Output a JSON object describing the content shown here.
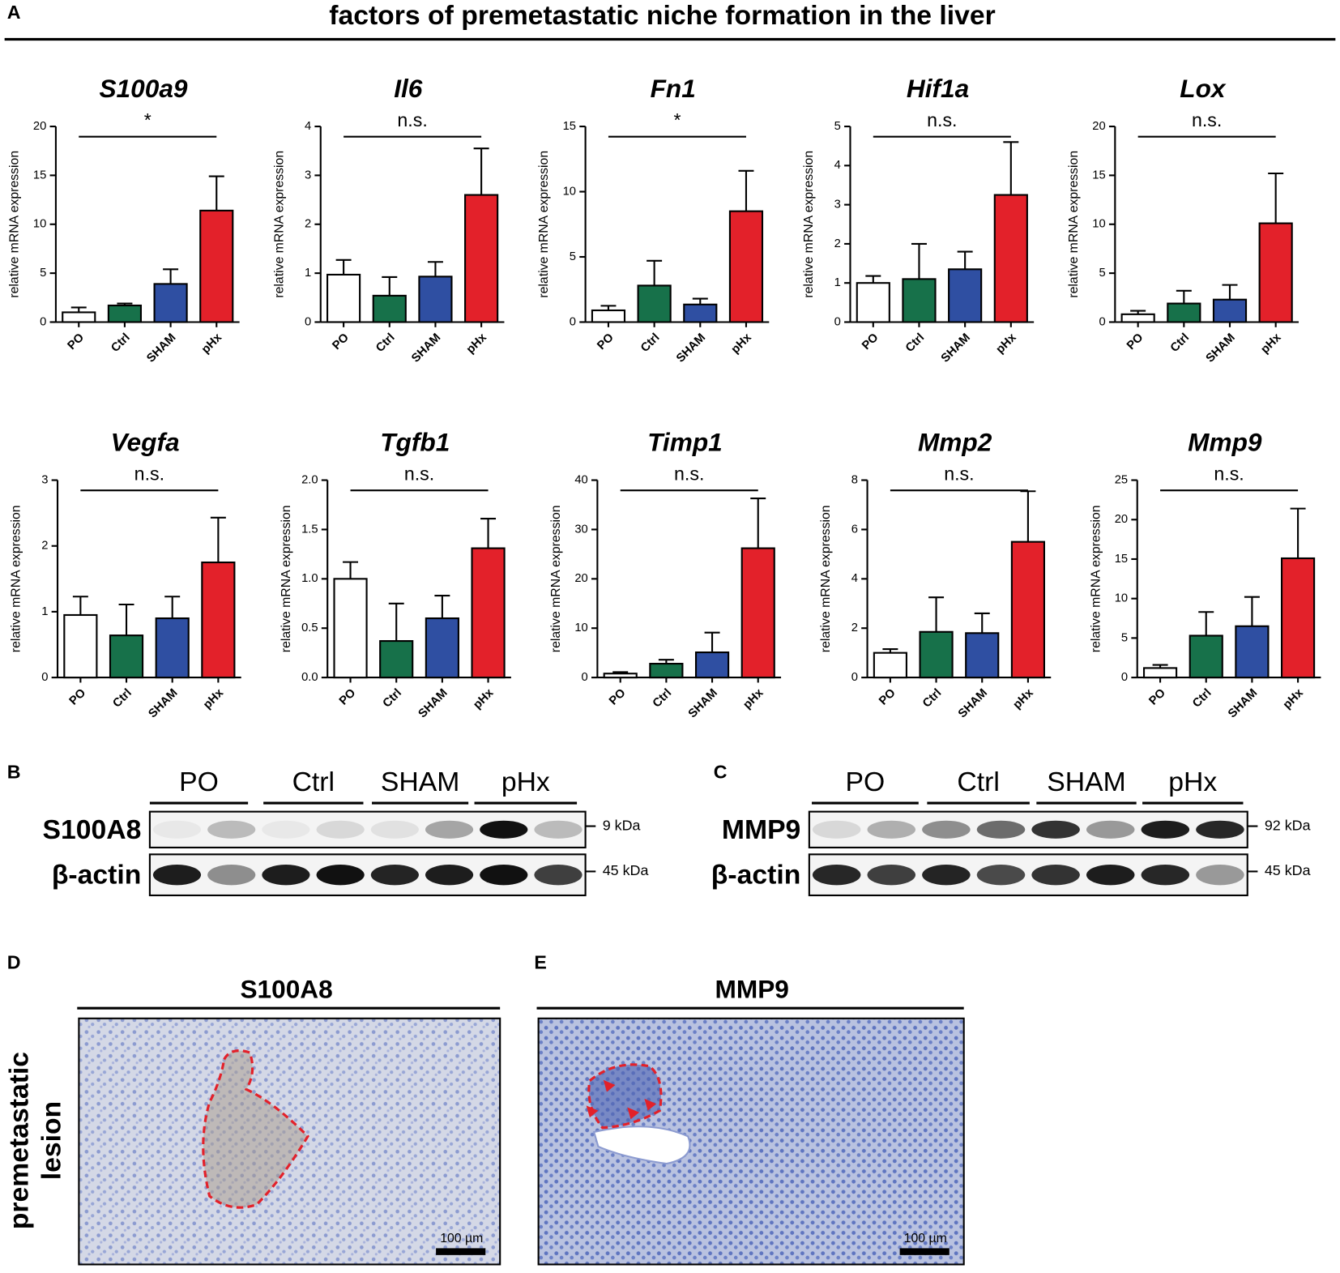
{
  "figure": {
    "title": "factors of premetastatic niche formation in the liver",
    "panel_labels": [
      "A",
      "B",
      "C",
      "D",
      "E"
    ],
    "ylabel": "relative mRNA expression"
  },
  "chart_data": [
    {
      "type": "bar",
      "title": "S100a9",
      "categories": [
        "PO",
        "Ctrl",
        "SHAM",
        "pHx"
      ],
      "colors": [
        "#ffffff",
        "#17714a",
        "#2f4fa2",
        "#e3212a"
      ],
      "values": [
        1.0,
        1.7,
        3.9,
        11.4
      ],
      "errors": [
        0.5,
        0.2,
        1.5,
        3.5
      ],
      "ylim": [
        0,
        20
      ],
      "yticks": [
        0,
        5,
        10,
        15,
        20
      ],
      "significance": "*"
    },
    {
      "type": "bar",
      "title": "Il6",
      "categories": [
        "PO",
        "Ctrl",
        "SHAM",
        "pHx"
      ],
      "colors": [
        "#ffffff",
        "#17714a",
        "#2f4fa2",
        "#e3212a"
      ],
      "values": [
        0.97,
        0.54,
        0.93,
        2.6
      ],
      "errors": [
        0.3,
        0.38,
        0.3,
        0.95
      ],
      "ylim": [
        0,
        4
      ],
      "yticks": [
        0,
        1,
        2,
        3,
        4
      ],
      "significance": "n.s."
    },
    {
      "type": "bar",
      "title": "Fn1",
      "categories": [
        "PO",
        "Ctrl",
        "SHAM",
        "pHx"
      ],
      "colors": [
        "#ffffff",
        "#17714a",
        "#2f4fa2",
        "#e3212a"
      ],
      "values": [
        0.9,
        2.8,
        1.35,
        8.5
      ],
      "errors": [
        0.35,
        1.9,
        0.45,
        3.1
      ],
      "ylim": [
        0,
        15
      ],
      "yticks": [
        0,
        5,
        10,
        15
      ],
      "significance": "*"
    },
    {
      "type": "bar",
      "title": "Hif1a",
      "categories": [
        "PO",
        "Ctrl",
        "SHAM",
        "pHx"
      ],
      "colors": [
        "#ffffff",
        "#17714a",
        "#2f4fa2",
        "#e3212a"
      ],
      "values": [
        1.0,
        1.1,
        1.35,
        3.25
      ],
      "errors": [
        0.18,
        0.9,
        0.45,
        1.35
      ],
      "ylim": [
        0,
        5
      ],
      "yticks": [
        0,
        1,
        2,
        3,
        4,
        5
      ],
      "significance": "n.s."
    },
    {
      "type": "bar",
      "title": "Lox",
      "categories": [
        "PO",
        "Ctrl",
        "SHAM",
        "pHx"
      ],
      "colors": [
        "#ffffff",
        "#17714a",
        "#2f4fa2",
        "#e3212a"
      ],
      "values": [
        0.8,
        1.9,
        2.3,
        10.1
      ],
      "errors": [
        0.35,
        1.3,
        1.5,
        5.1
      ],
      "ylim": [
        0,
        20
      ],
      "yticks": [
        0,
        5,
        10,
        15,
        20
      ],
      "significance": "n.s."
    },
    {
      "type": "bar",
      "title": "Vegfa",
      "categories": [
        "PO",
        "Ctrl",
        "SHAM",
        "pHx"
      ],
      "colors": [
        "#ffffff",
        "#17714a",
        "#2f4fa2",
        "#e3212a"
      ],
      "values": [
        0.95,
        0.64,
        0.9,
        1.75
      ],
      "errors": [
        0.28,
        0.47,
        0.33,
        0.68
      ],
      "ylim": [
        0,
        3
      ],
      "yticks": [
        0,
        1,
        2,
        3
      ],
      "significance": "n.s."
    },
    {
      "type": "bar",
      "title": "Tgfb1",
      "categories": [
        "PO",
        "Ctrl",
        "SHAM",
        "pHx"
      ],
      "colors": [
        "#ffffff",
        "#17714a",
        "#2f4fa2",
        "#e3212a"
      ],
      "values": [
        1.0,
        0.37,
        0.6,
        1.31
      ],
      "errors": [
        0.17,
        0.38,
        0.23,
        0.3
      ],
      "ylim": [
        0,
        2
      ],
      "yticks": [
        {
          "value": 0,
          "label": "0.0"
        },
        0.5,
        {
          "value": 1,
          "label": "1.0"
        },
        1.5,
        {
          "value": 2,
          "label": "2.0"
        }
      ],
      "significance": "n.s."
    },
    {
      "type": "bar",
      "title": "Timp1",
      "categories": [
        "PO",
        "Ctrl",
        "SHAM",
        "pHx"
      ],
      "colors": [
        "#ffffff",
        "#17714a",
        "#2f4fa2",
        "#e3212a"
      ],
      "values": [
        0.8,
        2.8,
        5.1,
        26.2
      ],
      "errors": [
        0.3,
        0.8,
        4.0,
        10.1
      ],
      "ylim": [
        0,
        40
      ],
      "yticks": [
        0,
        10,
        20,
        30,
        40
      ],
      "significance": "n.s."
    },
    {
      "type": "bar",
      "title": "Mmp2",
      "categories": [
        "PO",
        "Ctrl",
        "SHAM",
        "pHx"
      ],
      "colors": [
        "#ffffff",
        "#17714a",
        "#2f4fa2",
        "#e3212a"
      ],
      "values": [
        1.0,
        1.85,
        1.8,
        5.5
      ],
      "errors": [
        0.15,
        1.4,
        0.8,
        2.05
      ],
      "ylim": [
        0,
        8
      ],
      "yticks": [
        0,
        2,
        4,
        6,
        8
      ],
      "significance": "n.s."
    },
    {
      "type": "bar",
      "title": "Mmp9",
      "categories": [
        "PO",
        "Ctrl",
        "SHAM",
        "pHx"
      ],
      "colors": [
        "#ffffff",
        "#17714a",
        "#2f4fa2",
        "#e3212a"
      ],
      "values": [
        1.2,
        5.3,
        6.5,
        15.1
      ],
      "errors": [
        0.4,
        3.0,
        3.7,
        6.3
      ],
      "ylim": [
        0,
        25
      ],
      "yticks": [
        0,
        5,
        10,
        15,
        20,
        25
      ],
      "significance": "n.s."
    }
  ],
  "blots": [
    {
      "lanes": [
        "PO",
        "Ctrl",
        "SHAM",
        "pHx"
      ],
      "rows": [
        {
          "name": "S100A8",
          "size": "9 kDa"
        },
        {
          "name": "β-actin",
          "size": "45 kDa"
        }
      ]
    },
    {
      "lanes": [
        "PO",
        "Ctrl",
        "SHAM",
        "pHx"
      ],
      "rows": [
        {
          "name": "MMP9",
          "size": "92 kDa"
        },
        {
          "name": "β-actin",
          "size": "45 kDa"
        }
      ]
    }
  ],
  "histology": {
    "row_label": [
      "premetastatic",
      "lesion"
    ],
    "panels": [
      {
        "title": "S100A8",
        "scale_bar": "100 µm"
      },
      {
        "title": "MMP9",
        "scale_bar": "100 µm"
      }
    ]
  }
}
